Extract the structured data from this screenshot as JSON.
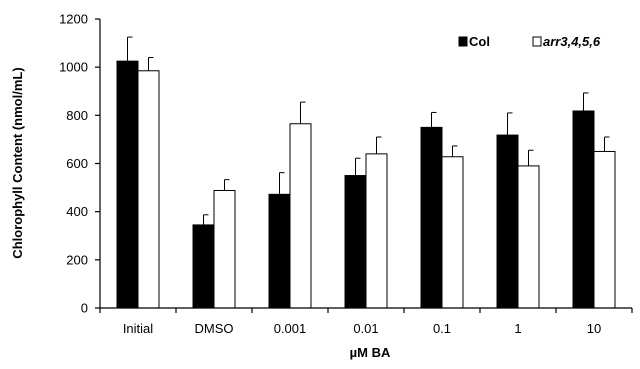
{
  "chart_data": {
    "type": "bar",
    "title": "",
    "xlabel": "µM BA",
    "ylabel": "Chlorophyll Content (nmol/mL)",
    "ylim": [
      0,
      1200
    ],
    "yticks": [
      0,
      200,
      400,
      600,
      800,
      1000,
      1200
    ],
    "categories": [
      "Initial",
      "DMSO",
      "0.001",
      "0.01",
      "0.1",
      "1",
      "10"
    ],
    "series": [
      {
        "name": "Col",
        "color": "#000000",
        "values": [
          1025,
          345,
          472,
          550,
          750,
          718,
          818
        ],
        "errors": [
          100,
          42,
          90,
          72,
          62,
          92,
          75
        ]
      },
      {
        "name": "arr3,4,5,6",
        "color": "#ffffff",
        "values": [
          985,
          488,
          765,
          640,
          628,
          590,
          650
        ],
        "errors": [
          55,
          45,
          90,
          70,
          45,
          65,
          60
        ]
      }
    ],
    "legend_position": "top-right",
    "grid": false
  }
}
